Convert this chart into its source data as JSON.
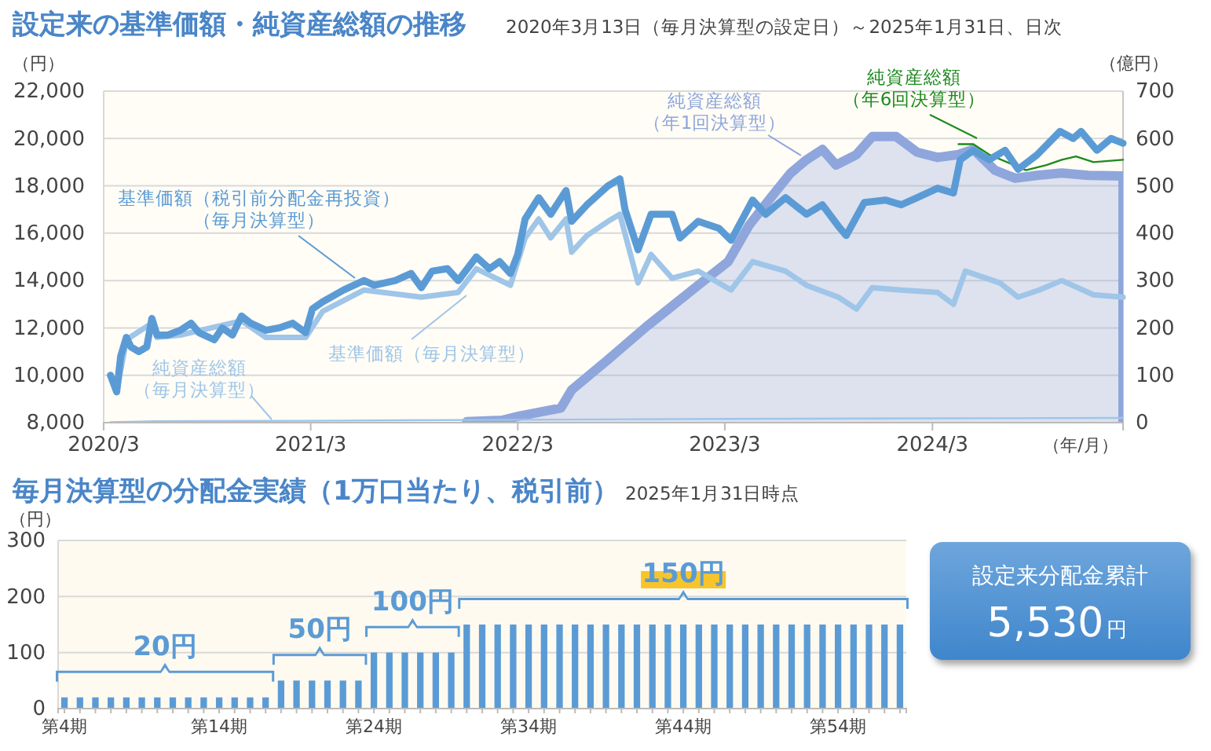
{
  "chart_data": [
    {
      "type": "line",
      "title": "設定来の基準価額・純資産総額の推移",
      "subtitle": "2020年3月13日（毎月決算型の設定日）～2025年1月31日、日次",
      "xlabel": "（年/月）",
      "ylabel": "（円）",
      "y2label": "（億円）",
      "xlim": [
        "2020-03-01",
        "2025-01-31"
      ],
      "xticks": [
        {
          "value": "2020-03-01",
          "label": "2020/3"
        },
        {
          "value": "2021-03-01",
          "label": "2021/3"
        },
        {
          "value": "2022-03-01",
          "label": "2022/3"
        },
        {
          "value": "2023-03-01",
          "label": "2023/3"
        },
        {
          "value": "2024-03-01",
          "label": "2024/3"
        }
      ],
      "ylim": [
        8000,
        22000
      ],
      "yticks": [
        {
          "value": 8000,
          "label": "8,000"
        },
        {
          "value": 10000,
          "label": "10,000"
        },
        {
          "value": 12000,
          "label": "12,000"
        },
        {
          "value": 14000,
          "label": "14,000"
        },
        {
          "value": 16000,
          "label": "16,000"
        },
        {
          "value": 18000,
          "label": "18,000"
        },
        {
          "value": 20000,
          "label": "20,000"
        },
        {
          "value": 22000,
          "label": "22,000"
        }
      ],
      "y2lim": [
        0,
        700
      ],
      "y2ticks": [
        0,
        100,
        200,
        300,
        400,
        500,
        600,
        700
      ],
      "grid": "y",
      "series": [
        {
          "name": "基準価額（税引前分配金再投資）（毎月決算型）",
          "color": "#5b9bd5",
          "x": [
            "2020-03-13",
            "2020-03-24",
            "2020-03-31",
            "2020-04-10",
            "2020-04-18",
            "2020-05-02",
            "2020-05-16",
            "2020-05-25",
            "2020-06-03",
            "2020-06-22",
            "2020-07-14",
            "2020-08-02",
            "2020-08-16",
            "2020-09-12",
            "2020-09-26",
            "2020-10-14",
            "2020-10-30",
            "2020-11-15",
            "2020-12-12",
            "2021-01-04",
            "2021-01-28",
            "2021-02-20",
            "2021-03-04",
            "2021-03-22",
            "2021-04-28",
            "2021-06-03",
            "2021-06-21",
            "2021-07-28",
            "2021-08-25",
            "2021-09-12",
            "2021-10-01",
            "2021-10-28",
            "2021-11-16",
            "2021-12-18",
            "2022-01-10",
            "2022-01-28",
            "2022-02-16",
            "2022-03-01",
            "2022-03-14",
            "2022-04-07",
            "2022-04-28",
            "2022-05-25",
            "2022-06-04",
            "2022-07-01",
            "2022-08-07",
            "2022-08-28",
            "2022-09-06",
            "2022-09-29",
            "2022-10-22",
            "2022-11-28",
            "2022-12-12",
            "2023-01-13",
            "2023-02-19",
            "2023-03-12",
            "2023-04-19",
            "2023-05-12",
            "2023-06-16",
            "2023-07-23",
            "2023-08-20",
            "2023-09-17",
            "2023-10-01",
            "2023-11-02",
            "2023-12-09",
            "2024-01-06",
            "2024-02-03",
            "2024-03-10",
            "2024-04-07",
            "2024-04-19",
            "2024-05-12",
            "2024-06-09",
            "2024-07-07",
            "2024-07-30",
            "2024-09-01",
            "2024-10-12",
            "2024-11-04",
            "2024-11-18",
            "2024-12-16",
            "2025-01-10",
            "2025-01-31"
          ],
          "values": [
            10000,
            9300,
            10800,
            11600,
            11200,
            11000,
            11200,
            12400,
            11700,
            11700,
            11900,
            12200,
            11800,
            11500,
            12000,
            11700,
            12500,
            12200,
            11900,
            12000,
            12200,
            11800,
            12800,
            13100,
            13600,
            14000,
            13800,
            14000,
            14300,
            13700,
            14400,
            14500,
            14000,
            15000,
            14500,
            14800,
            14300,
            15100,
            16600,
            17500,
            16800,
            17800,
            16500,
            17200,
            18000,
            18300,
            17000,
            15300,
            16800,
            16800,
            15800,
            16500,
            16200,
            15700,
            17400,
            16800,
            17500,
            16800,
            17200,
            16300,
            15900,
            17300,
            17400,
            17200,
            17500,
            17900,
            17700,
            19100,
            19500,
            19100,
            19500,
            18700,
            19300,
            20300,
            20000,
            20300,
            19500,
            20000,
            19800
          ]
        },
        {
          "name": "基準価額（毎月決算型）",
          "color": "#9fc5e8",
          "x": [
            "2020-03-13",
            "2020-03-24",
            "2020-04-10",
            "2020-05-25",
            "2020-06-03",
            "2020-07-14",
            "2020-10-30",
            "2020-12-12",
            "2021-02-20",
            "2021-03-22",
            "2021-06-03",
            "2021-09-12",
            "2021-11-16",
            "2021-12-18",
            "2022-02-16",
            "2022-03-14",
            "2022-04-07",
            "2022-04-28",
            "2022-05-25",
            "2022-06-04",
            "2022-07-01",
            "2022-08-07",
            "2022-08-28",
            "2022-09-29",
            "2022-10-22",
            "2022-11-28",
            "2023-01-13",
            "2023-03-12",
            "2023-04-19",
            "2023-06-16",
            "2023-07-23",
            "2023-09-17",
            "2023-10-19",
            "2023-11-16",
            "2024-01-06",
            "2024-03-10",
            "2024-04-07",
            "2024-04-28",
            "2024-06-28",
            "2024-07-30",
            "2024-09-05",
            "2024-10-15",
            "2024-12-10",
            "2025-01-31"
          ],
          "values": [
            10000,
            9300,
            11500,
            12200,
            11600,
            11700,
            12300,
            11600,
            11600,
            12700,
            13600,
            13300,
            13500,
            14500,
            13800,
            15800,
            16600,
            15800,
            16600,
            15200,
            15900,
            16500,
            16800,
            13900,
            15100,
            14100,
            14400,
            13600,
            14800,
            14400,
            13800,
            13300,
            12800,
            13700,
            13600,
            13500,
            13000,
            14400,
            13900,
            13300,
            13600,
            14000,
            13400,
            13300
          ]
        },
        {
          "name": "純資産総額（毎月決算型）",
          "color": "#9fc5e8",
          "type": "line",
          "axis": "y2",
          "x": [
            "2020-03-13",
            "2020-06-01",
            "2021-03-01",
            "2022-03-01",
            "2023-03-01",
            "2024-03-01",
            "2025-01-31"
          ],
          "values": [
            1,
            3,
            4,
            6,
            8,
            9,
            10
          ]
        },
        {
          "name": "純資産総額（年1回決算型）",
          "color": "#8fa6dc",
          "type": "area",
          "axis": "y2",
          "x": [
            "2021-12-01",
            "2022-02-01",
            "2022-03-04",
            "2022-05-16",
            "2022-06-04",
            "2022-08-07",
            "2022-10-13",
            "2022-11-28",
            "2023-01-13",
            "2023-03-07",
            "2023-04-13",
            "2023-05-19",
            "2023-06-25",
            "2023-07-23",
            "2023-08-20",
            "2023-09-13",
            "2023-10-19",
            "2023-11-16",
            "2023-12-28",
            "2024-02-03",
            "2024-03-10",
            "2024-04-16",
            "2024-05-12",
            "2024-06-19",
            "2024-07-25",
            "2024-09-01",
            "2024-10-15",
            "2024-12-01",
            "2025-01-31"
          ],
          "values": [
            2,
            5,
            14,
            31,
            69,
            133,
            202,
            246,
            290,
            340,
            417,
            472,
            527,
            555,
            577,
            544,
            566,
            604,
            604,
            571,
            560,
            566,
            577,
            533,
            516,
            522,
            527,
            522,
            521
          ]
        },
        {
          "name": "純資産総額（年6回決算型）",
          "color": "#1e8a1e",
          "type": "line",
          "axis": "y2",
          "x": [
            "2024-04-16",
            "2024-05-12",
            "2024-06-09",
            "2024-08-13",
            "2024-09-18",
            "2024-10-15",
            "2024-11-09",
            "2024-12-10",
            "2025-01-31"
          ],
          "values": [
            588,
            588,
            566,
            533,
            544,
            555,
            562,
            550,
            555
          ]
        }
      ]
    },
    {
      "type": "bar",
      "title": "毎月決算型の分配金実績（1万口当たり、税引前）",
      "subtitle": "2025年1月31日時点",
      "ylabel": "（円）",
      "categories": [
        "第4期",
        null,
        null,
        null,
        null,
        null,
        null,
        null,
        null,
        null,
        "第14期",
        null,
        null,
        null,
        null,
        null,
        null,
        null,
        null,
        null,
        "第24期",
        null,
        null,
        null,
        null,
        null,
        null,
        null,
        null,
        null,
        "第34期",
        null,
        null,
        null,
        null,
        null,
        null,
        null,
        null,
        null,
        "第44期",
        null,
        null,
        null,
        null,
        null,
        null,
        null,
        null,
        null,
        "第54期",
        null,
        null,
        null,
        null
      ],
      "values": [
        20,
        20,
        20,
        20,
        20,
        20,
        20,
        20,
        20,
        20,
        20,
        20,
        20,
        20,
        50,
        50,
        50,
        50,
        50,
        50,
        100,
        100,
        100,
        100,
        100,
        100,
        150,
        150,
        150,
        150,
        150,
        150,
        150,
        150,
        150,
        150,
        150,
        150,
        150,
        150,
        150,
        150,
        150,
        150,
        150,
        150,
        150,
        150,
        150,
        150,
        150,
        150,
        150,
        150,
        150
      ],
      "color": "#5b9bd5",
      "ylim": [
        0,
        300
      ],
      "yticks": [
        0,
        100,
        200,
        300
      ],
      "grid": "y",
      "annotations": [
        {
          "text": "20円",
          "y": 20
        },
        {
          "text": "50円",
          "y": 50
        },
        {
          "text": "100円",
          "y": 100
        },
        {
          "text": "150円",
          "y": 150
        }
      ]
    },
    {
      "type": "other",
      "title": "設定来分配金累計",
      "annotations": [
        "5,530",
        "円"
      ]
    }
  ]
}
